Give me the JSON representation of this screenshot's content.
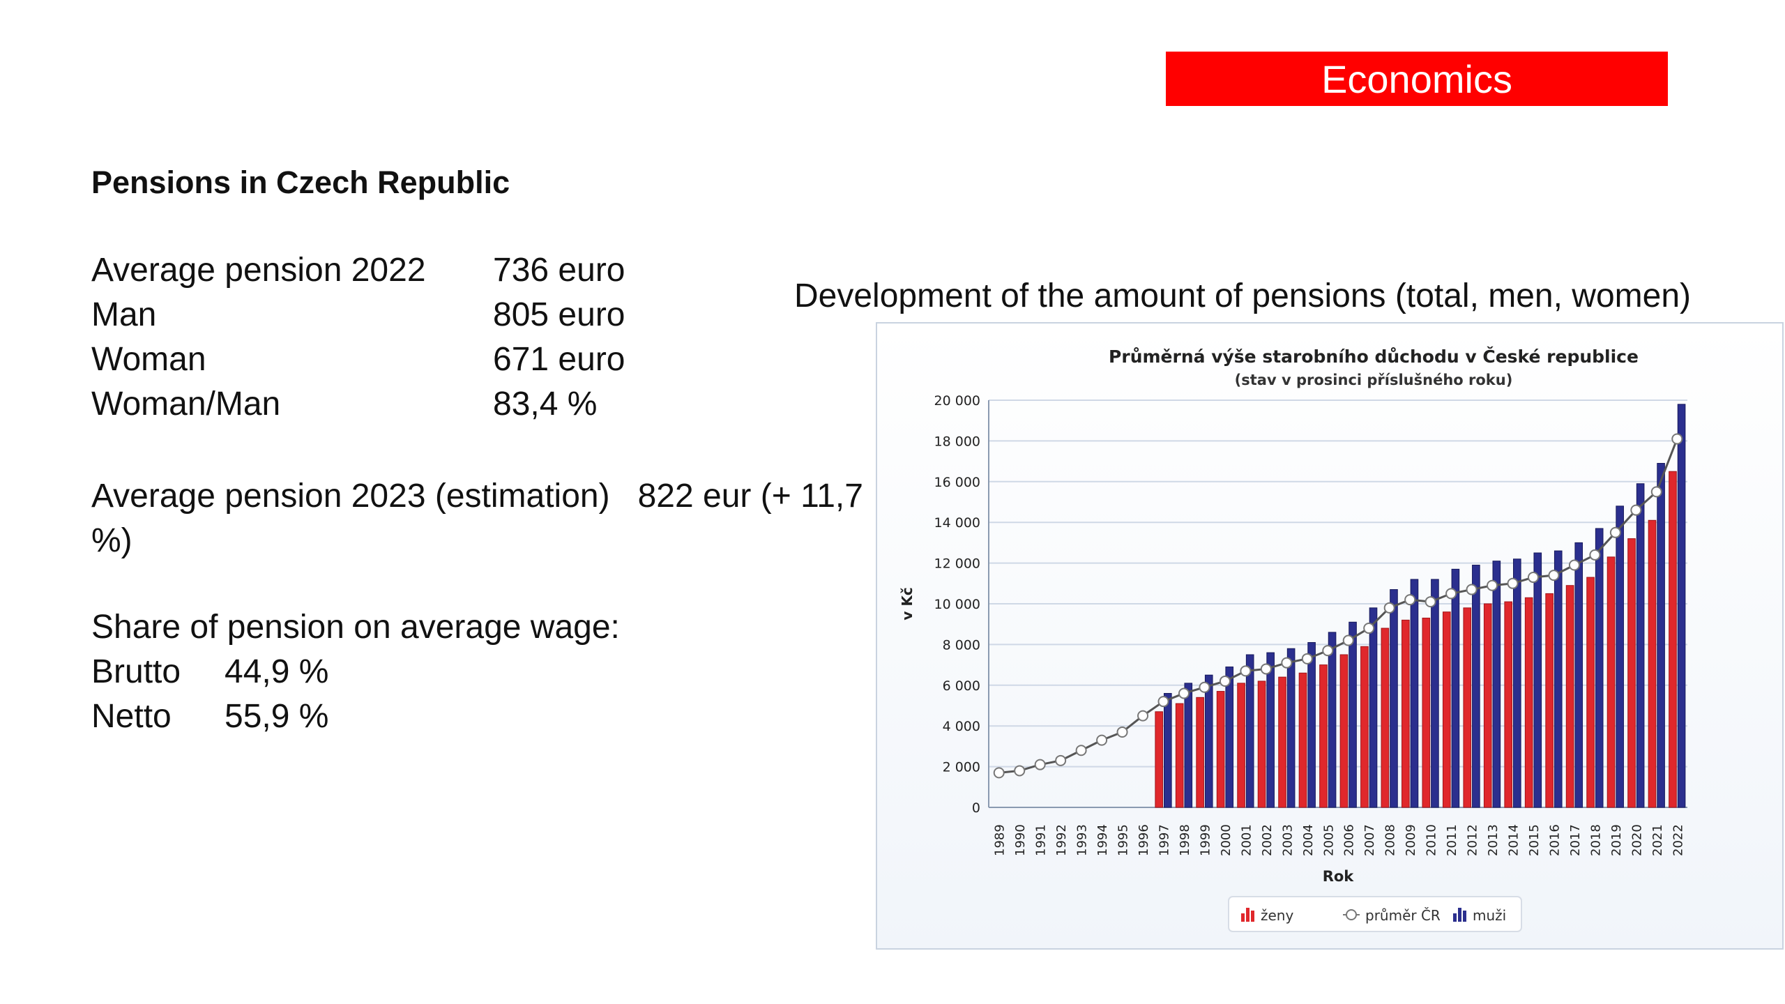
{
  "banner": {
    "label": "Economics"
  },
  "heading": "Pensions in Czech Republic",
  "stats": [
    {
      "label": "Average pension 2022",
      "value": "736 euro"
    },
    {
      "label": "Man",
      "value": "805 euro"
    },
    {
      "label": "Woman",
      "value": "671 euro"
    },
    {
      "label": "Woman/Man",
      "value": "83,4 %"
    }
  ],
  "estimation": {
    "line1": "Average pension 2023 (estimation)   822 eur (+ 11,7",
    "line2": "%)"
  },
  "share": {
    "heading": "Share of pension on average wage:",
    "items": [
      {
        "label": "Brutto",
        "value": "44,9 %"
      },
      {
        "label": "Netto",
        "value": "55,9 %"
      }
    ]
  },
  "chart_caption": "Development of the amount of pensions (total, men, women)",
  "colors": {
    "women": "#e0282c",
    "men": "#2b2f8e",
    "average": "#ffffff",
    "banner": "#ff0000"
  },
  "chart_data": {
    "type": "bar",
    "title": "Průměrná výše starobního důchodu v České republice",
    "subtitle": "(stav v prosinci příslušného roku)",
    "xlabel": "Rok",
    "ylabel": "v Kč",
    "ylim": [
      0,
      20000
    ],
    "ytick_labels": [
      "0",
      "2 000",
      "4 000",
      "6 000",
      "8 000",
      "10 000",
      "12 000",
      "14 000",
      "16 000",
      "18 000",
      "20 000"
    ],
    "grid": true,
    "legend_position": "bottom",
    "categories": [
      "1989",
      "1990",
      "1991",
      "1992",
      "1993",
      "1994",
      "1995",
      "1996",
      "1997",
      "1998",
      "1999",
      "2000",
      "2001",
      "2002",
      "2003",
      "2004",
      "2005",
      "2006",
      "2007",
      "2008",
      "2009",
      "2010",
      "2011",
      "2012",
      "2013",
      "2014",
      "2015",
      "2016",
      "2017",
      "2018",
      "2019",
      "2020",
      "2021",
      "2022"
    ],
    "series": [
      {
        "name": "ženy",
        "type": "bar",
        "values": [
          null,
          null,
          null,
          null,
          null,
          null,
          null,
          null,
          4700,
          5100,
          5400,
          5700,
          6100,
          6200,
          6400,
          6600,
          7000,
          7500,
          7900,
          8800,
          9200,
          9300,
          9600,
          9800,
          10000,
          10100,
          10300,
          10500,
          10900,
          11300,
          12300,
          13200,
          14100,
          16500
        ]
      },
      {
        "name": "průměr ČR",
        "type": "line",
        "values": [
          1700,
          1800,
          2100,
          2300,
          2800,
          3300,
          3700,
          4500,
          5200,
          5600,
          5900,
          6200,
          6700,
          6800,
          7100,
          7300,
          7700,
          8200,
          8800,
          9800,
          10200,
          10100,
          10500,
          10700,
          10900,
          11000,
          11300,
          11400,
          11900,
          12400,
          13500,
          14600,
          15500,
          18100
        ]
      },
      {
        "name": "muži",
        "type": "bar",
        "values": [
          null,
          null,
          null,
          null,
          null,
          null,
          null,
          null,
          5600,
          6100,
          6500,
          6900,
          7500,
          7600,
          7800,
          8100,
          8600,
          9100,
          9800,
          10700,
          11200,
          11200,
          11700,
          11900,
          12100,
          12200,
          12500,
          12600,
          13000,
          13700,
          14800,
          15900,
          16900,
          19800
        ]
      }
    ]
  }
}
